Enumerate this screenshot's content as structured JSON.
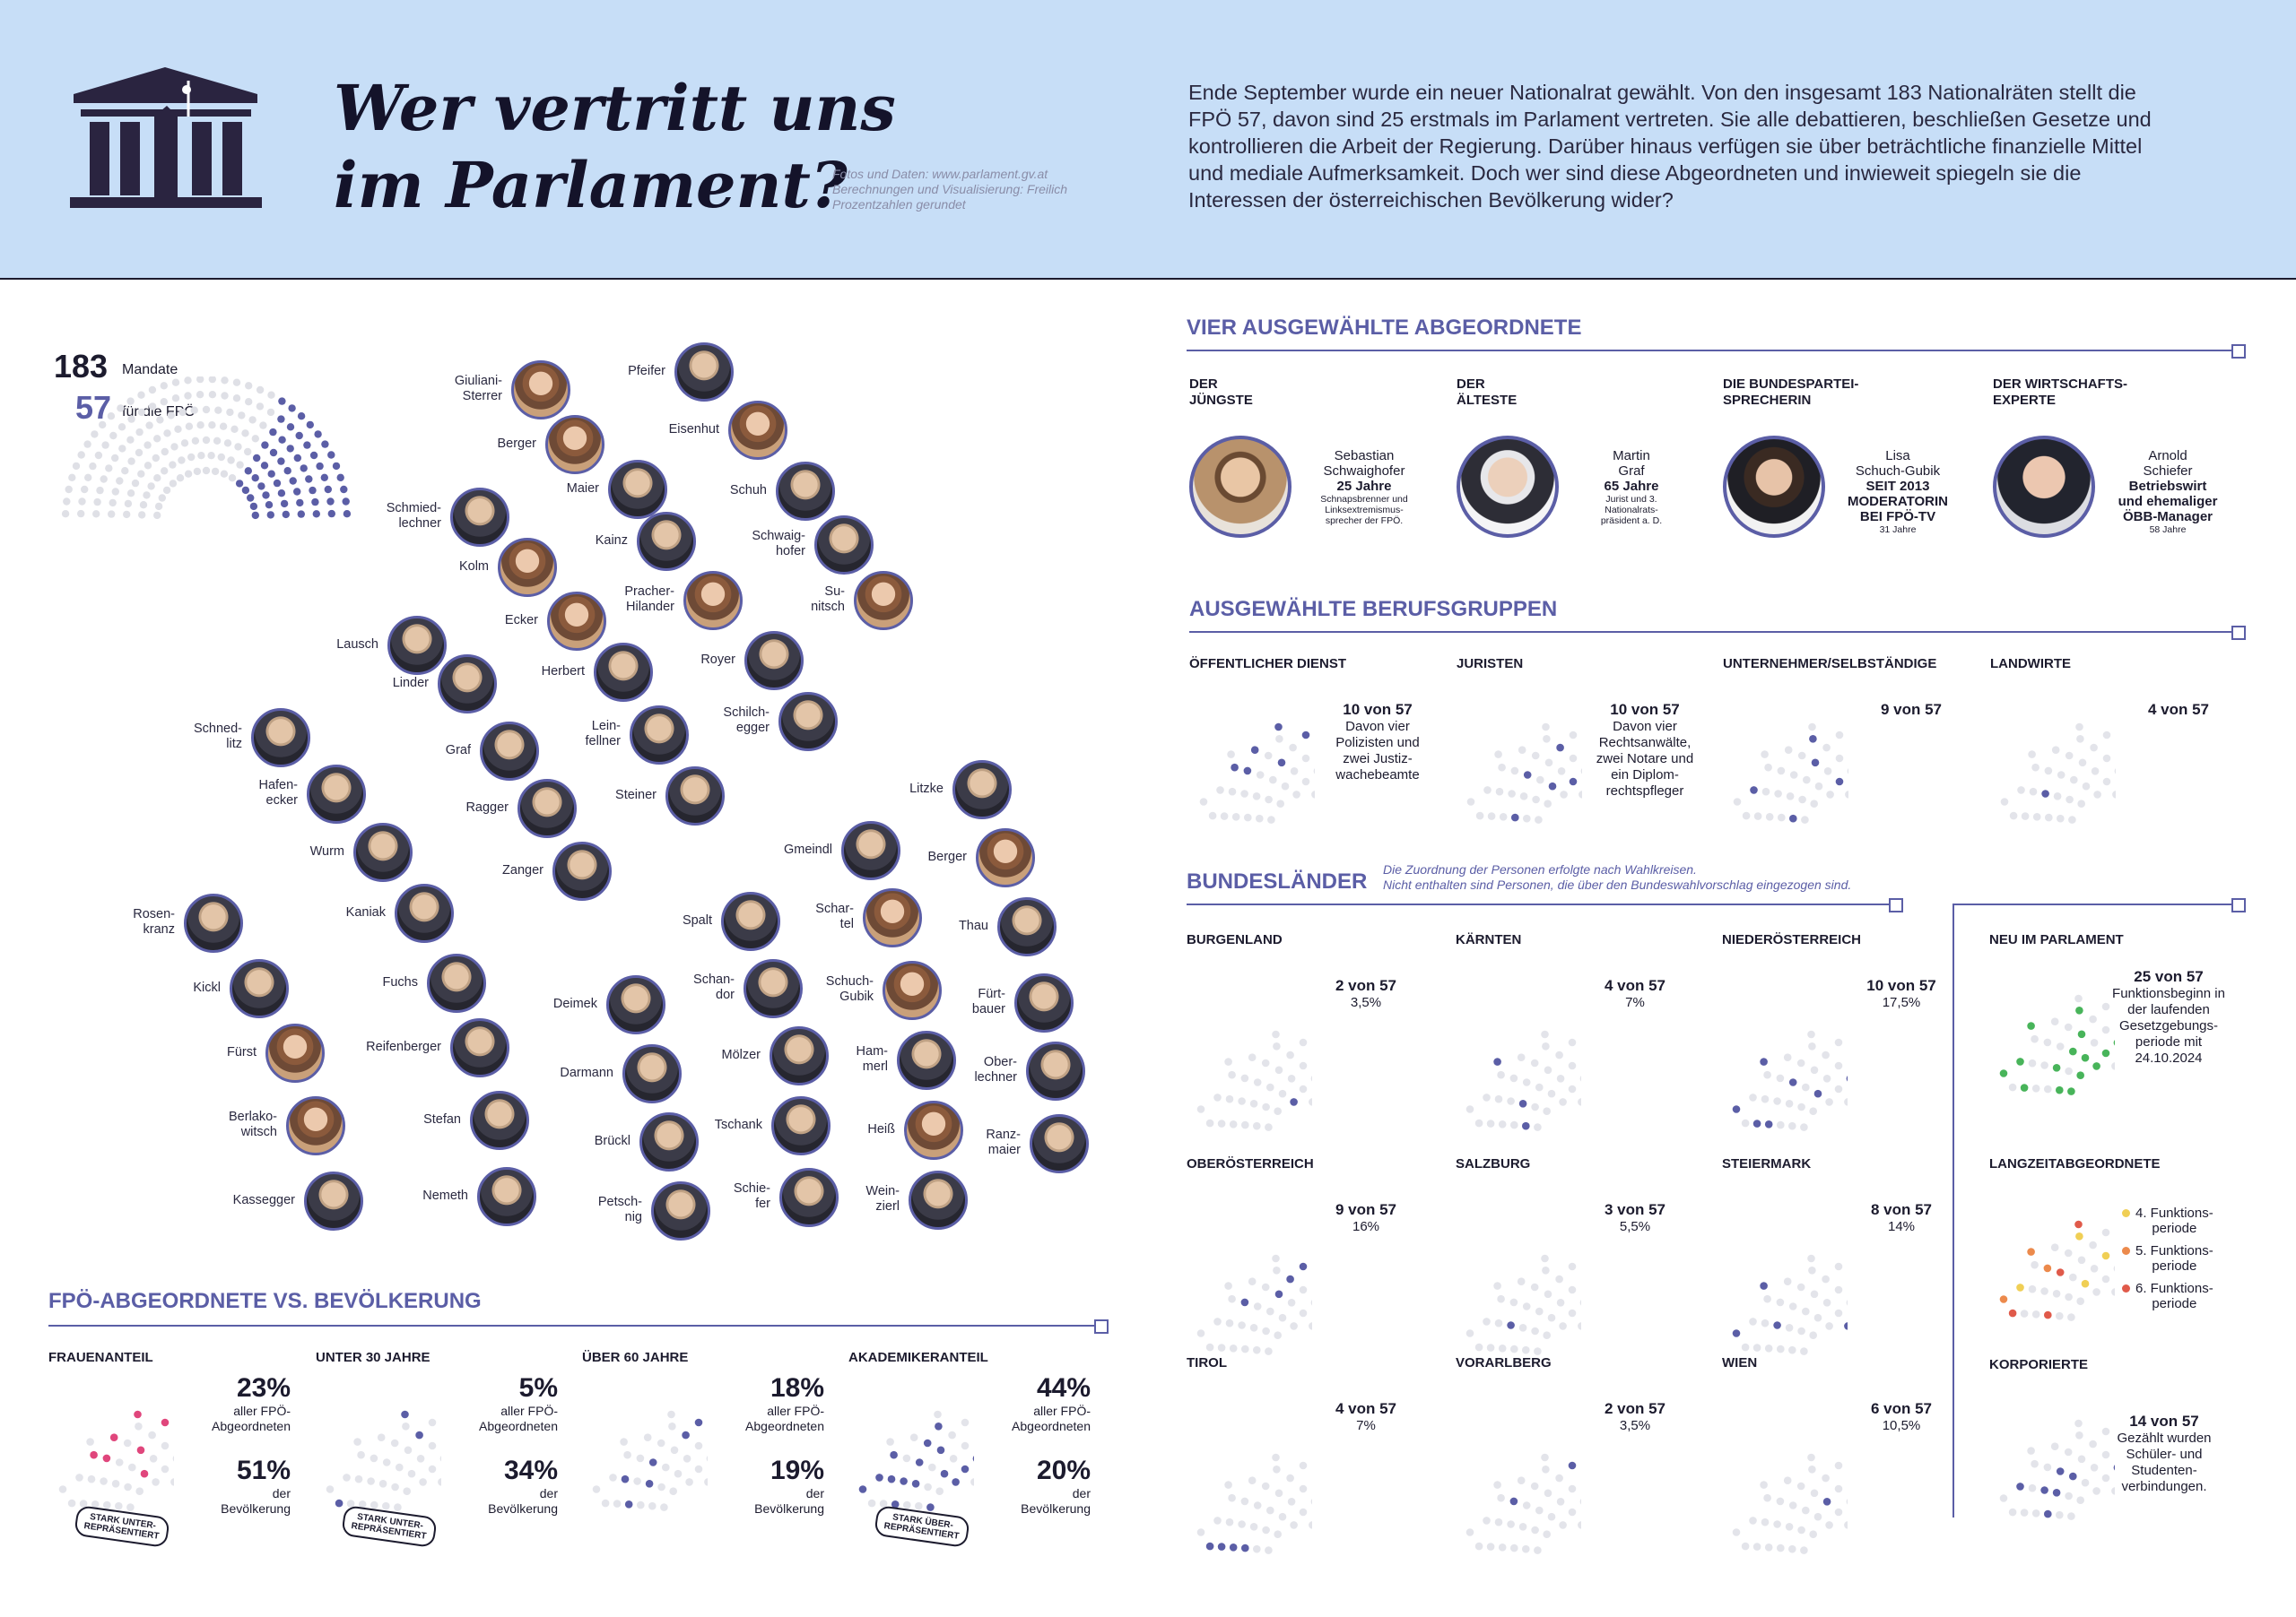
{
  "header": {
    "title_line1": "Wer vertritt uns",
    "title_line2": "im Parlament?",
    "credits_line1": "Fotos und Daten: www.parlament.gv.at",
    "credits_line2": "Berechnungen und Visualisierung: Freilich",
    "credits_line3": "Prozentzahlen gerundet",
    "intro": "Ende September wurde ein neuer Nationalrat gewählt. Von den insgesamt 183 Nationalräten stellt die FPÖ 57, davon sind 25 erstmals im Parlament vertreten. Sie alle debattieren, beschließen Gesetze und kontrollieren die Arbeit der Regierung. Darüber hinaus verfügen sie über beträchtliche finanzielle Mittel und mediale Aufmerksamkeit. Doch wer sind diese Abgeordneten und inwieweit spiegeln sie die Interessen der österreichischen Bevölkerung wider?"
  },
  "mandates": {
    "total": "183",
    "total_label": "Mandate",
    "fpo": "57",
    "fpo_label": "für die FPÖ"
  },
  "members": [
    {
      "id": "m1",
      "name": "Pfeifer",
      "f": false
    },
    {
      "id": "m2",
      "name": "Giuliani-\nSterrer",
      "f": true
    },
    {
      "id": "m3",
      "name": "Eisenhut",
      "f": true
    },
    {
      "id": "m4",
      "name": "Berger",
      "f": true
    },
    {
      "id": "m5",
      "name": "Maier",
      "f": false
    },
    {
      "id": "m6",
      "name": "Schuh",
      "f": false
    },
    {
      "id": "m7",
      "name": "Schmied-\nlechner",
      "f": false
    },
    {
      "id": "m8",
      "name": "Kainz",
      "f": false
    },
    {
      "id": "m9",
      "name": "Schwaig-\nhofer",
      "f": false
    },
    {
      "id": "m10",
      "name": "Kolm",
      "f": true
    },
    {
      "id": "m11",
      "name": "Pracher-\nHilander",
      "f": true
    },
    {
      "id": "m12",
      "name": "Su-\nnitsch",
      "f": true
    },
    {
      "id": "m13",
      "name": "Ecker",
      "f": true
    },
    {
      "id": "m14",
      "name": "Lausch",
      "f": false
    },
    {
      "id": "m15",
      "name": "Royer",
      "f": false
    },
    {
      "id": "m16",
      "name": "Herbert",
      "f": false
    },
    {
      "id": "m17",
      "name": "Linder",
      "f": false
    },
    {
      "id": "m18",
      "name": "Schilch-\negger",
      "f": false
    },
    {
      "id": "m19",
      "name": "Schned-\nlitz",
      "f": false
    },
    {
      "id": "m20",
      "name": "Graf",
      "f": false
    },
    {
      "id": "m21",
      "name": "Lein-\nfellner",
      "f": false
    },
    {
      "id": "m22",
      "name": "Hafen-\necker",
      "f": false
    },
    {
      "id": "m23",
      "name": "Steiner",
      "f": false
    },
    {
      "id": "m24",
      "name": "Litzke",
      "f": false
    },
    {
      "id": "m25",
      "name": "Ragger",
      "f": false
    },
    {
      "id": "m26",
      "name": "Wurm",
      "f": false
    },
    {
      "id": "m27",
      "name": "Gmeindl",
      "f": false
    },
    {
      "id": "m28",
      "name": "Berger",
      "f": true
    },
    {
      "id": "m29",
      "name": "Zanger",
      "f": false
    },
    {
      "id": "m30",
      "name": "Rosen-\nkranz",
      "f": false
    },
    {
      "id": "m31",
      "name": "Kaniak",
      "f": false
    },
    {
      "id": "m32",
      "name": "Spalt",
      "f": false
    },
    {
      "id": "m33",
      "name": "Schar-\ntel",
      "f": true
    },
    {
      "id": "m34",
      "name": "Thau",
      "f": false
    },
    {
      "id": "m35",
      "name": "Kickl",
      "f": false
    },
    {
      "id": "m36",
      "name": "Fuchs",
      "f": false
    },
    {
      "id": "m37",
      "name": "Schan-\ndor",
      "f": false
    },
    {
      "id": "m38",
      "name": "Deimek",
      "f": false
    },
    {
      "id": "m39",
      "name": "Schuch-\nGubik",
      "f": true
    },
    {
      "id": "m40",
      "name": "Fürt-\nbauer",
      "f": false
    },
    {
      "id": "m41",
      "name": "Fürst",
      "f": true
    },
    {
      "id": "m42",
      "name": "Reifenberger",
      "f": false
    },
    {
      "id": "m43",
      "name": "Mölzer",
      "f": false
    },
    {
      "id": "m44",
      "name": "Ham-\nmerl",
      "f": false
    },
    {
      "id": "m45",
      "name": "Ober-\nlechner",
      "f": false
    },
    {
      "id": "m46",
      "name": "Darmann",
      "f": false
    },
    {
      "id": "m47",
      "name": "Berlako-\nwitsch",
      "f": true
    },
    {
      "id": "m48",
      "name": "Stefan",
      "f": false
    },
    {
      "id": "m49",
      "name": "Tschank",
      "f": false
    },
    {
      "id": "m50",
      "name": "Heiß",
      "f": true
    },
    {
      "id": "m51",
      "name": "Ranz-\nmaier",
      "f": false
    },
    {
      "id": "m52",
      "name": "Brückl",
      "f": false
    },
    {
      "id": "m53",
      "name": "Kassegger",
      "f": false
    },
    {
      "id": "m54",
      "name": "Nemeth",
      "f": false
    },
    {
      "id": "m55",
      "name": "Petsch-\nnig",
      "f": false
    },
    {
      "id": "m56",
      "name": "Schie-\nfer",
      "f": false
    },
    {
      "id": "m57",
      "name": "Wein-\nzierl",
      "f": false
    }
  ],
  "vier": {
    "title": "VIER AUSGEWÄHLTE ABGEORDNETE",
    "items": [
      {
        "cat": "DER\nJÜNGSTE",
        "name": "Sebastian\nSchwaighofer",
        "bold": "25 Jahre",
        "desc": "Schnapsbrenner und\nLinksextremismus-\nsprecher der FPÖ."
      },
      {
        "cat": "DER\nÄLTESTE",
        "name": "Martin\nGraf",
        "bold": "65 Jahre",
        "desc": "Jurist und 3.\nNationalrats-\npräsident a. D."
      },
      {
        "cat": "DIE BUNDESPARTEI-\nSPRECHERIN",
        "name": "Lisa\nSchuch-Gubik",
        "bold": "SEIT 2013\nMODERATORIN\nBEI FPÖ-TV",
        "desc": "31 Jahre"
      },
      {
        "cat": "DER WIRTSCHAFTS-\nEXPERTE",
        "name": "Arnold\nSchiefer",
        "bold": "Betriebswirt\nund ehemaliger\nÖBB-Manager",
        "desc": "58 Jahre"
      }
    ]
  },
  "beruf": {
    "title": "AUSGEWÄHLTE BERUFSGRUPPEN",
    "items": [
      {
        "label": "ÖFFENTLICHER DIENST",
        "count": "10 von 57",
        "desc": "Davon vier\nPolizisten und\nzwei Justiz-\nwachebeamte"
      },
      {
        "label": "JURISTEN",
        "count": "10 von 57",
        "desc": "Davon vier\nRechtsanwälte,\nzwei Notare und\nein Diplom-\nrechtspfleger"
      },
      {
        "label": "UNTERNEHMER/SELBSTÄNDIGE",
        "count": "9 von 57",
        "desc": ""
      },
      {
        "label": "LANDWIRTE",
        "count": "4 von 57",
        "desc": ""
      }
    ]
  },
  "laender": {
    "title": "BUNDESLÄNDER",
    "note": "Die Zuordnung der Personen erfolgte nach Wahlkreisen.\nNicht enthalten sind Personen, die über den Bundeswahlvorschlag eingezogen sind.",
    "items": [
      {
        "label": "BURGENLAND",
        "count": "2 von 57",
        "pct": "3,5%"
      },
      {
        "label": "KÄRNTEN",
        "count": "4 von 57",
        "pct": "7%"
      },
      {
        "label": "NIEDERÖSTERREICH",
        "count": "10 von 57",
        "pct": "17,5%"
      },
      {
        "label": "OBERÖSTERREICH",
        "count": "9 von 57",
        "pct": "16%"
      },
      {
        "label": "SALZBURG",
        "count": "3 von 57",
        "pct": "5,5%"
      },
      {
        "label": "STEIERMARK",
        "count": "8 von 57",
        "pct": "14%"
      },
      {
        "label": "TIROL",
        "count": "4 von 57",
        "pct": "7%"
      },
      {
        "label": "VORARLBERG",
        "count": "2 von 57",
        "pct": "3,5%"
      },
      {
        "label": "WIEN",
        "count": "6 von 57",
        "pct": "10,5%"
      }
    ]
  },
  "neu": {
    "label": "NEU IM PARLAMENT",
    "count": "25 von 57",
    "desc": "Funktionsbeginn in\nder laufenden\nGesetzgebungs-\nperiode mit\n24.10.2024"
  },
  "langzeit": {
    "label": "LANGZEITABGEORDNETE",
    "legend": [
      "4. Funktions-\nperiode",
      "5. Funktions-\nperiode",
      "6. Funktions-\nperiode"
    ],
    "colors": [
      "#f0cf55",
      "#ec8a4c",
      "#e05a4a"
    ]
  },
  "korp": {
    "label": "KORPORIERTE",
    "count": "14 von 57",
    "desc": "Gezählt wurden\nSchüler- und\nStudenten-\nverbindungen."
  },
  "vs": {
    "title": "FPÖ-ABGEORDNETE VS. BEVÖLKERUNG",
    "items": [
      {
        "label": "FRAUENANTEIL",
        "a": "23%",
        "a_sub": "aller FPÖ-\nAbgeordneten",
        "b": "51%",
        "b_sub": "der\nBevölkerung",
        "stamp": "STARK UNTER-\nREPRÄSENTIERT"
      },
      {
        "label": "UNTER 30 JAHRE",
        "a": "5%",
        "a_sub": "aller FPÖ-\nAbgeordneten",
        "b": "34%",
        "b_sub": "der\nBevölkerung",
        "stamp": "STARK UNTER-\nREPRÄSENTIERT"
      },
      {
        "label": "ÜBER 60 JAHRE",
        "a": "18%",
        "a_sub": "aller FPÖ-\nAbgeordneten",
        "b": "19%",
        "b_sub": "der\nBevölkerung",
        "stamp": ""
      },
      {
        "label": "AKADEMIKERANTEIL",
        "a": "44%",
        "a_sub": "aller FPÖ-\nAbgeordneten",
        "b": "20%",
        "b_sub": "der\nBevölkerung",
        "stamp": "STARK ÜBER-\nREPRÄSENTIERT"
      }
    ]
  },
  "colors": {
    "accent": "#5b5ea6",
    "dot_grey": "#e3e4ea",
    "pink": "#e0467c",
    "green": "#48b45a",
    "header_bg": "#c7def7"
  }
}
